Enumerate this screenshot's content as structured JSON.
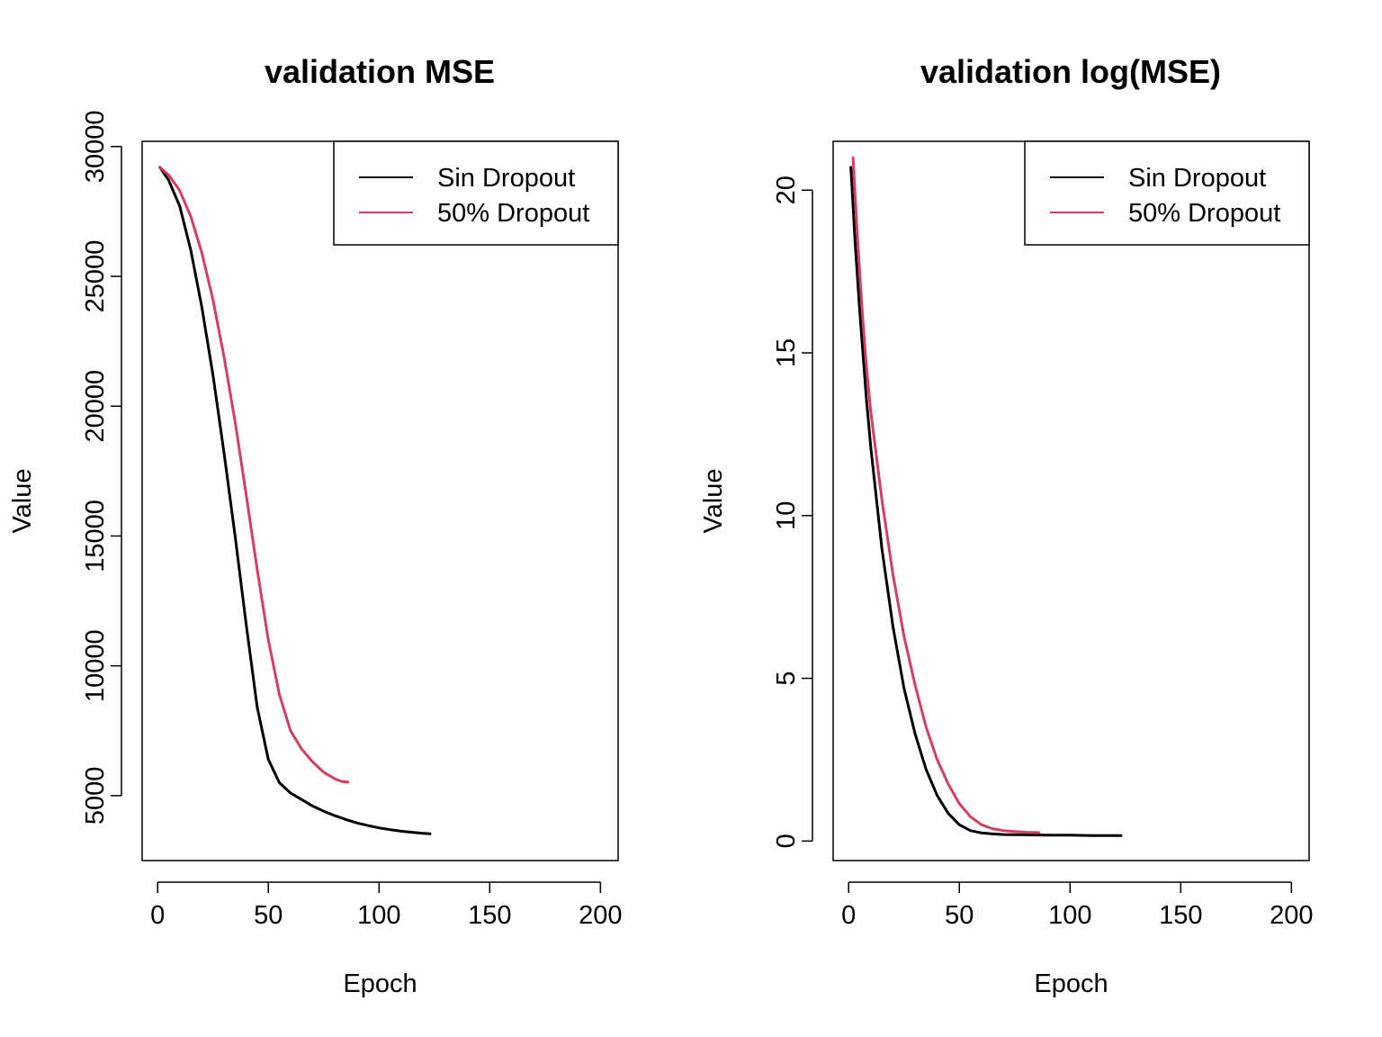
{
  "chart_data": [
    {
      "type": "line",
      "title": "validation MSE",
      "xlabel": "Epoch",
      "ylabel": "Value",
      "xlim": [
        -7,
        208
      ],
      "ylim": [
        2500,
        30200
      ],
      "xticks": [
        0,
        50,
        100,
        150,
        200
      ],
      "yticks": [
        5000,
        10000,
        15000,
        20000,
        25000,
        30000
      ],
      "xtick_labels": [
        "0",
        "50",
        "100",
        "150",
        "200"
      ],
      "ytick_labels": [
        "5000",
        "10000",
        "15000",
        "20000",
        "25000",
        "30000"
      ],
      "grid": false,
      "legend_position": "top-right",
      "series": [
        {
          "name": "Sin Dropout",
          "color": "#000000",
          "x": [
            1,
            5,
            10,
            15,
            20,
            25,
            30,
            35,
            40,
            45,
            50,
            55,
            60,
            65,
            70,
            75,
            80,
            85,
            90,
            95,
            100,
            105,
            110,
            115,
            120,
            123
          ],
          "y": [
            29200,
            28700,
            27700,
            26000,
            23800,
            21200,
            18200,
            15000,
            11600,
            8400,
            6400,
            5500,
            5100,
            4850,
            4600,
            4400,
            4230,
            4080,
            3950,
            3850,
            3760,
            3690,
            3630,
            3590,
            3550,
            3530
          ]
        },
        {
          "name": "50% Dropout",
          "color": "#d23f60",
          "x": [
            1,
            5,
            10,
            15,
            20,
            25,
            30,
            35,
            40,
            45,
            50,
            55,
            60,
            65,
            70,
            75,
            80,
            83,
            86
          ],
          "y": [
            29200,
            28900,
            28300,
            27300,
            25900,
            24100,
            21900,
            19400,
            16600,
            13700,
            11000,
            8900,
            7500,
            6800,
            6300,
            5900,
            5650,
            5550,
            5520
          ]
        }
      ]
    },
    {
      "type": "line",
      "title": "validation log(MSE)",
      "xlabel": "Epoch",
      "ylabel": "Value",
      "xlim": [
        -7,
        208
      ],
      "ylim": [
        -0.6,
        21.5
      ],
      "xticks": [
        0,
        50,
        100,
        150,
        200
      ],
      "yticks": [
        0,
        5,
        10,
        15,
        20
      ],
      "xtick_labels": [
        "0",
        "50",
        "100",
        "150",
        "200"
      ],
      "ytick_labels": [
        "0",
        "5",
        "10",
        "15",
        "20"
      ],
      "grid": false,
      "legend_position": "top-right",
      "series": [
        {
          "name": "Sin Dropout",
          "color": "#000000",
          "x": [
            1,
            3,
            5,
            8,
            10,
            15,
            20,
            25,
            30,
            35,
            40,
            45,
            50,
            55,
            60,
            65,
            70,
            80,
            90,
            100,
            110,
            123
          ],
          "y": [
            20.7,
            18.3,
            16.3,
            13.6,
            12.1,
            9.0,
            6.6,
            4.7,
            3.3,
            2.2,
            1.4,
            0.85,
            0.5,
            0.32,
            0.25,
            0.22,
            0.2,
            0.19,
            0.18,
            0.18,
            0.17,
            0.17
          ]
        },
        {
          "name": "50% Dropout",
          "color": "#d23f60",
          "x": [
            2,
            4,
            6,
            8,
            10,
            15,
            20,
            25,
            30,
            35,
            40,
            45,
            50,
            55,
            60,
            65,
            70,
            75,
            80,
            86
          ],
          "y": [
            21.0,
            18.5,
            16.4,
            14.6,
            13.2,
            10.5,
            8.2,
            6.3,
            4.8,
            3.5,
            2.5,
            1.75,
            1.15,
            0.75,
            0.5,
            0.38,
            0.32,
            0.29,
            0.27,
            0.26
          ]
        }
      ]
    }
  ]
}
